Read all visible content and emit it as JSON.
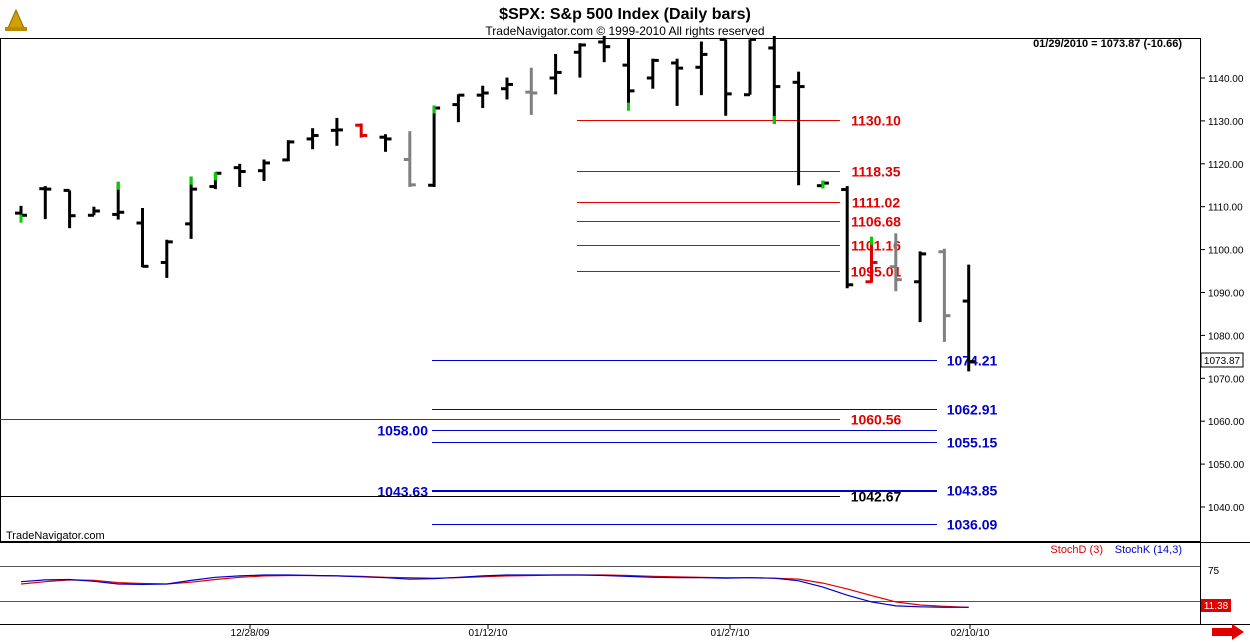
{
  "header": {
    "title": "$SPX:  S&p 500 Index  (Daily bars)",
    "copyright": "TradeNavigator.com © 1999-2010 All rights reserved",
    "last_info": "01/29/2010 = 1073.87 (-10.66)",
    "watermark": "TradeNavigator.com"
  },
  "colors": {
    "red": "#e00000",
    "blue": "#0000cc",
    "black": "#000000",
    "gray": "#808080",
    "green": "#00d000"
  },
  "chart_data": {
    "type": "ohlc",
    "title": "$SPX:  S&p 500 Index  (Daily bars)",
    "price_axis": {
      "ticks": [
        "1140.00",
        "1130.00",
        "1120.00",
        "1110.00",
        "1100.00",
        "1090.00",
        "1080.00",
        "1070.00",
        "1060.00",
        "1050.00",
        "1040.00"
      ],
      "ylim": [
        1034,
        1150
      ],
      "current_price_label": "1073.87"
    },
    "date_axis": {
      "ticks": [
        "12/28/09",
        "01/12/10",
        "01/27/10",
        "02/10/10"
      ]
    },
    "bars": [
      {
        "o": 1108.5,
        "h": 1110.2,
        "l": 1106.3,
        "c": 1108.0,
        "color": "black",
        "tick": "green"
      },
      {
        "o": 1114.2,
        "h": 1114.8,
        "l": 1107.1,
        "c": 1114.1,
        "color": "black"
      },
      {
        "o": 1113.8,
        "h": 1113.8,
        "l": 1105.0,
        "c": 1107.9,
        "color": "black"
      },
      {
        "o": 1108.0,
        "h": 1110.0,
        "l": 1108.0,
        "c": 1109.0,
        "color": "black"
      },
      {
        "o": 1108.2,
        "h": 1115.8,
        "l": 1107.0,
        "c": 1108.7,
        "color": "black",
        "tick": "green"
      },
      {
        "o": 1106.2,
        "h": 1109.7,
        "l": 1095.9,
        "c": 1096.1,
        "color": "black"
      },
      {
        "o": 1097.0,
        "h": 1102.3,
        "l": 1093.4,
        "c": 1101.8,
        "color": "black"
      },
      {
        "o": 1106.0,
        "h": 1117.0,
        "l": 1102.5,
        "c": 1114.1,
        "color": "black",
        "tick": "green"
      },
      {
        "o": 1114.7,
        "h": 1118.0,
        "l": 1114.1,
        "c": 1117.8,
        "color": "black",
        "tick": "green"
      },
      {
        "o": 1119.1,
        "h": 1120.0,
        "l": 1114.6,
        "c": 1118.2,
        "color": "black"
      },
      {
        "o": 1118.4,
        "h": 1121.0,
        "l": 1116.0,
        "c": 1120.2,
        "color": "black"
      },
      {
        "o": 1120.9,
        "h": 1125.5,
        "l": 1120.6,
        "c": 1125.1,
        "color": "black"
      },
      {
        "o": 1125.8,
        "h": 1128.3,
        "l": 1123.4,
        "c": 1126.6,
        "color": "black"
      },
      {
        "o": 1127.8,
        "h": 1130.7,
        "l": 1124.2,
        "c": 1127.9,
        "color": "black"
      },
      {
        "o": 1129.0,
        "h": 1129.4,
        "l": 1126.1,
        "c": 1126.6,
        "color": "red"
      },
      {
        "o": 1126.2,
        "h": 1126.9,
        "l": 1122.8,
        "c": 1125.8,
        "color": "black"
      },
      {
        "o": 1121.0,
        "h": 1127.6,
        "l": 1114.6,
        "c": 1115.1,
        "color": "gray"
      },
      {
        "o": 1115.0,
        "h": 1133.6,
        "l": 1114.6,
        "c": 1133.0,
        "color": "black",
        "tick": "green"
      },
      {
        "o": 1133.8,
        "h": 1136.2,
        "l": 1129.7,
        "c": 1136.0,
        "color": "black"
      },
      {
        "o": 1136.0,
        "h": 1138.2,
        "l": 1133.0,
        "c": 1136.5,
        "color": "black"
      },
      {
        "o": 1137.5,
        "h": 1140.1,
        "l": 1135.0,
        "c": 1138.5,
        "color": "black"
      },
      {
        "o": 1136.7,
        "h": 1142.4,
        "l": 1131.4,
        "c": 1136.5,
        "color": "gray"
      },
      {
        "o": 1140.0,
        "h": 1145.6,
        "l": 1136.2,
        "c": 1141.3,
        "color": "black"
      },
      {
        "o": 1146.0,
        "h": 1148.1,
        "l": 1140.1,
        "c": 1147.7,
        "color": "black"
      },
      {
        "o": 1148.4,
        "h": 1149.8,
        "l": 1143.7,
        "c": 1147.3,
        "color": "black"
      },
      {
        "o": 1143.0,
        "h": 1149.3,
        "l": 1132.4,
        "c": 1137.0,
        "color": "black",
        "tick": "green"
      },
      {
        "o": 1140.0,
        "h": 1144.5,
        "l": 1137.5,
        "c": 1144.1,
        "color": "black"
      },
      {
        "o": 1143.5,
        "h": 1144.5,
        "l": 1133.5,
        "c": 1142.3,
        "color": "black"
      },
      {
        "o": 1142.5,
        "h": 1148.5,
        "l": 1136.0,
        "c": 1145.5,
        "color": "black"
      },
      {
        "o": 1149.0,
        "h": 1149.0,
        "l": 1131.2,
        "c": 1136.3,
        "color": "black"
      },
      {
        "o": 1136.1,
        "h": 1149.0,
        "l": 1136.1,
        "c": 1149.0,
        "color": "black"
      },
      {
        "o": 1147.0,
        "h": 1149.8,
        "l": 1129.3,
        "c": 1138.0,
        "color": "black",
        "tick": "green"
      },
      {
        "o": 1139.0,
        "h": 1141.5,
        "l": 1115.0,
        "c": 1138.0,
        "color": "black"
      },
      {
        "o": 1114.9,
        "h": 1116.1,
        "l": 1114.5,
        "c": 1115.5,
        "color": "black",
        "tick": "green"
      },
      {
        "o": 1114.0,
        "h": 1114.8,
        "l": 1091.0,
        "c": 1091.8,
        "color": "black"
      },
      {
        "o": 1092.5,
        "h": 1103.0,
        "l": 1092.3,
        "c": 1097.0,
        "color": "red",
        "tick": "green"
      },
      {
        "o": 1096.0,
        "h": 1103.8,
        "l": 1090.3,
        "c": 1093.0,
        "color": "gray"
      },
      {
        "o": 1092.5,
        "h": 1099.6,
        "l": 1083.1,
        "c": 1099.0,
        "color": "black"
      },
      {
        "o": 1099.5,
        "h": 1100.2,
        "l": 1078.5,
        "c": 1084.6,
        "color": "gray"
      },
      {
        "o": 1088.0,
        "h": 1096.5,
        "l": 1071.6,
        "c": 1073.9,
        "color": "black"
      }
    ],
    "levels": [
      {
        "value": 1130.1,
        "label": "1130.10",
        "color": "red"
      },
      {
        "value": 1118.35,
        "label": "1118.35",
        "color": "red"
      },
      {
        "value": 1111.02,
        "label": "1111.02",
        "color": "red"
      },
      {
        "value": 1106.68,
        "label": "1106.68",
        "color": "red"
      },
      {
        "value": 1101.16,
        "label": "1101.16",
        "color": "red"
      },
      {
        "value": 1095.01,
        "label": "1095.01",
        "color": "red"
      },
      {
        "value": 1074.21,
        "label": "1074.21",
        "color": "blue"
      },
      {
        "value": 1062.91,
        "label": "1062.91",
        "color": "blue"
      },
      {
        "value": 1060.56,
        "label": "1060.56",
        "color": "red"
      },
      {
        "value": 1058.0,
        "label": "1058.00",
        "color": "blue"
      },
      {
        "value": 1055.15,
        "label": "1055.15",
        "color": "blue"
      },
      {
        "value": 1043.85,
        "label": "1043.85",
        "color": "blue"
      },
      {
        "value": 1043.63,
        "label": "1043.63",
        "color": "blue"
      },
      {
        "value": 1042.67,
        "label": "1042.67",
        "color": "black"
      },
      {
        "value": 1036.09,
        "label": "1036.09",
        "color": "blue"
      }
    ],
    "stochastic": {
      "legend_d": "StochD (3)",
      "legend_k": "StochK (14,3)",
      "level_label": "75",
      "current_label": "11.38",
      "k": [
        70,
        74,
        75,
        71,
        65,
        64,
        65,
        73,
        80,
        83,
        85,
        85,
        84,
        83,
        81,
        79,
        76,
        77,
        80,
        83,
        85,
        85,
        85,
        85,
        84,
        82,
        80,
        79,
        79,
        78,
        79,
        78,
        72,
        58,
        40,
        25,
        16,
        14,
        13,
        13
      ],
      "d": [
        65,
        70,
        74,
        73,
        68,
        66,
        65,
        69,
        75,
        80,
        83,
        84,
        84,
        83,
        82,
        80,
        79,
        78,
        79,
        81,
        83,
        84,
        85,
        85,
        85,
        84,
        82,
        81,
        80,
        79,
        79,
        78,
        76,
        67,
        54,
        39,
        25,
        18,
        15,
        13
      ]
    }
  }
}
